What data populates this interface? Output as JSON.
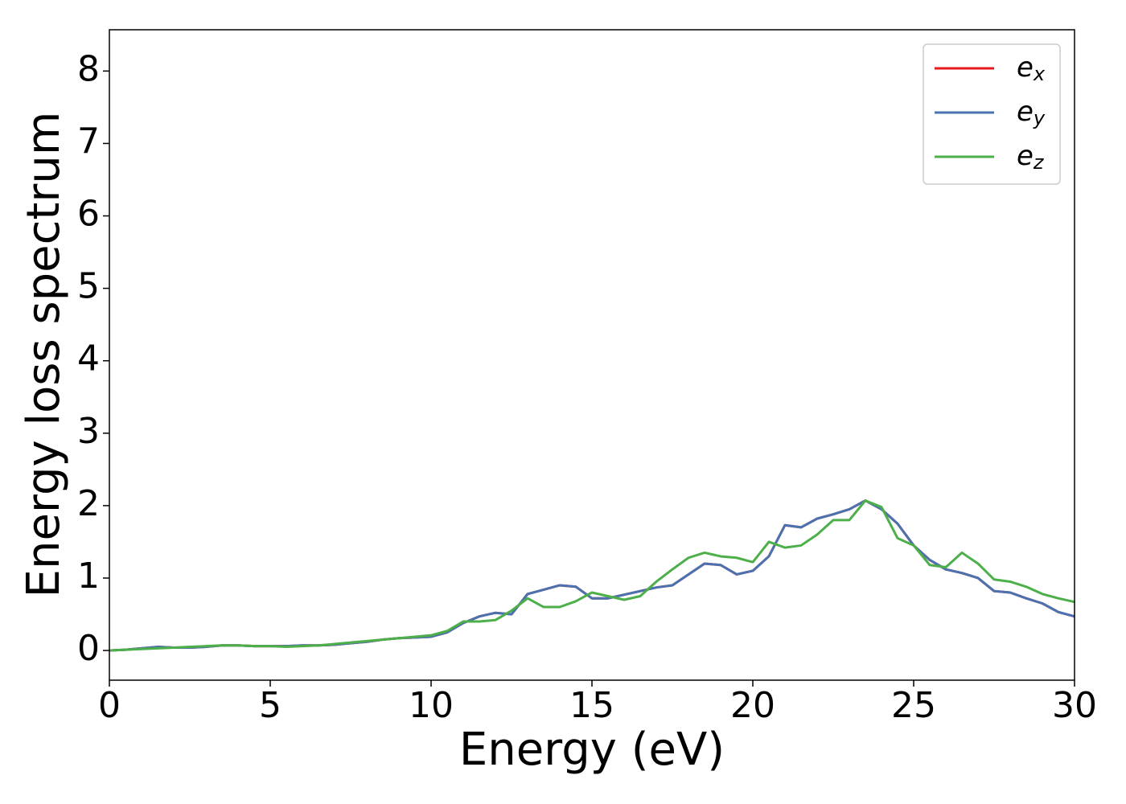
{
  "chart_data": {
    "type": "line",
    "xlabel": "Energy (eV)",
    "ylabel": "Energy loss spectrum",
    "x": [
      0,
      0.5,
      1,
      1.5,
      2,
      2.5,
      3,
      3.5,
      4,
      4.5,
      5,
      5.5,
      6,
      6.5,
      7,
      7.5,
      8,
      8.5,
      9,
      9.5,
      10,
      10.5,
      11,
      11.5,
      12,
      12.5,
      13,
      13.5,
      14,
      14.5,
      15,
      15.5,
      16,
      16.5,
      17,
      17.5,
      18,
      18.5,
      19,
      19.5,
      20,
      20.5,
      21,
      21.5,
      22,
      22.5,
      23,
      23.5,
      24,
      24.5,
      25,
      25.5,
      26,
      26.5,
      27,
      27.5,
      28,
      28.5,
      29,
      29.5,
      30
    ],
    "series": [
      {
        "name": "ex",
        "color": "#e41a1c",
        "values": [
          0,
          0.01,
          0.03,
          0.05,
          0.04,
          0.04,
          0.05,
          0.07,
          0.07,
          0.06,
          0.06,
          0.06,
          0.07,
          0.07,
          0.08,
          0.1,
          0.12,
          0.15,
          0.17,
          0.18,
          0.19,
          0.25,
          0.38,
          0.47,
          0.52,
          0.5,
          0.78,
          0.84,
          0.9,
          0.88,
          0.72,
          0.72,
          0.77,
          0.82,
          0.87,
          0.9,
          1.05,
          1.2,
          1.18,
          1.05,
          1.1,
          1.3,
          1.73,
          1.7,
          1.82,
          1.88,
          1.95,
          2.07,
          1.95,
          1.75,
          1.45,
          1.25,
          1.12,
          1.07,
          1.0,
          0.82,
          0.8,
          0.72,
          0.65,
          0.53,
          0.47
        ]
      },
      {
        "name": "ey",
        "color": "#4a72b0",
        "values": [
          0,
          0.01,
          0.03,
          0.05,
          0.04,
          0.04,
          0.05,
          0.07,
          0.07,
          0.06,
          0.06,
          0.06,
          0.07,
          0.07,
          0.08,
          0.1,
          0.12,
          0.15,
          0.17,
          0.18,
          0.19,
          0.25,
          0.38,
          0.47,
          0.52,
          0.5,
          0.78,
          0.84,
          0.9,
          0.88,
          0.72,
          0.72,
          0.77,
          0.82,
          0.87,
          0.9,
          1.05,
          1.2,
          1.18,
          1.05,
          1.1,
          1.3,
          1.73,
          1.7,
          1.82,
          1.88,
          1.95,
          2.07,
          1.95,
          1.75,
          1.45,
          1.25,
          1.12,
          1.07,
          1.0,
          0.82,
          0.8,
          0.72,
          0.65,
          0.53,
          0.47
        ]
      },
      {
        "name": "ez",
        "color": "#4daf4a",
        "values": [
          0,
          0.01,
          0.02,
          0.03,
          0.04,
          0.05,
          0.06,
          0.07,
          0.07,
          0.06,
          0.06,
          0.05,
          0.06,
          0.07,
          0.09,
          0.11,
          0.13,
          0.15,
          0.17,
          0.19,
          0.21,
          0.27,
          0.4,
          0.4,
          0.42,
          0.55,
          0.72,
          0.6,
          0.6,
          0.68,
          0.8,
          0.75,
          0.7,
          0.75,
          0.95,
          1.12,
          1.28,
          1.35,
          1.3,
          1.28,
          1.22,
          1.5,
          1.42,
          1.45,
          1.6,
          1.8,
          1.8,
          2.07,
          1.98,
          1.55,
          1.45,
          1.18,
          1.15,
          1.35,
          1.2,
          0.98,
          0.95,
          0.88,
          0.78,
          0.72,
          0.67
        ]
      }
    ],
    "xlim": [
      0,
      30
    ],
    "xticks": [
      0,
      5,
      10,
      15,
      20,
      25,
      30
    ],
    "ylim": [
      -0.41,
      8.57
    ],
    "yticks": [
      0,
      1,
      2,
      3,
      4,
      5,
      6,
      7,
      8
    ],
    "legend": "upper right"
  }
}
